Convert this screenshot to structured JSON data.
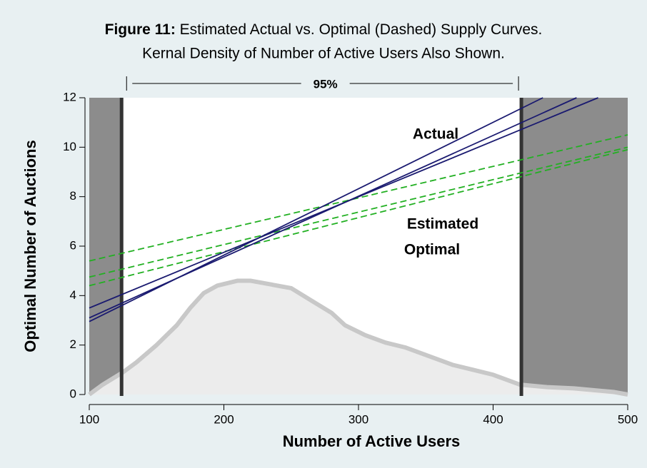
{
  "chart_data": {
    "type": "line",
    "title": {
      "bold": "Figure 11:",
      "line1": "Estimated Actual vs. Optimal (Dashed) Supply Curves.",
      "line2": "Kernal Density of Number of Active Users Also Shown."
    },
    "x_label": "Number of Active Users",
    "y_label": "Optimal Number of Auctions",
    "xlim": [
      100,
      500
    ],
    "ylim": [
      0,
      12
    ],
    "xticks": [
      100,
      200,
      300,
      400,
      500
    ],
    "yticks": [
      0,
      2,
      4,
      6,
      8,
      10,
      12
    ],
    "interval": {
      "from": 124,
      "to": 421,
      "label": "95%",
      "color": "#8c8c8c"
    },
    "annotations": {
      "actual": "Actual",
      "optimal": [
        "Estimated",
        "Optimal"
      ]
    },
    "actual_color": "#1a1a70",
    "optimal_color": "#22b022",
    "actual_lines": [
      {
        "x": [
          100,
          437
        ],
        "values": [
          2.95,
          12
        ]
      },
      {
        "x": [
          100,
          462
        ],
        "values": [
          3.1,
          12
        ]
      },
      {
        "x": [
          100,
          478
        ],
        "values": [
          3.5,
          12
        ]
      }
    ],
    "optimal_lines": [
      {
        "x": [
          100,
          500
        ],
        "values": [
          5.4,
          10.5
        ]
      },
      {
        "x": [
          100,
          500
        ],
        "values": [
          4.75,
          10.0
        ]
      },
      {
        "x": [
          100,
          500
        ],
        "values": [
          4.4,
          9.9
        ]
      }
    ],
    "density": {
      "color": "#c8c8c8",
      "fill": "#ececec",
      "x": [
        100,
        110,
        125,
        135,
        150,
        165,
        175,
        185,
        195,
        210,
        220,
        235,
        250,
        265,
        280,
        290,
        305,
        320,
        335,
        350,
        370,
        385,
        400,
        420,
        440,
        460,
        480,
        490,
        500
      ],
      "values": [
        0,
        0.4,
        0.9,
        1.3,
        2.0,
        2.8,
        3.5,
        4.1,
        4.4,
        4.6,
        4.6,
        4.45,
        4.3,
        3.8,
        3.3,
        2.8,
        2.4,
        2.1,
        1.9,
        1.6,
        1.2,
        1.0,
        0.8,
        0.4,
        0.3,
        0.25,
        0.15,
        0.1,
        0
      ]
    }
  }
}
